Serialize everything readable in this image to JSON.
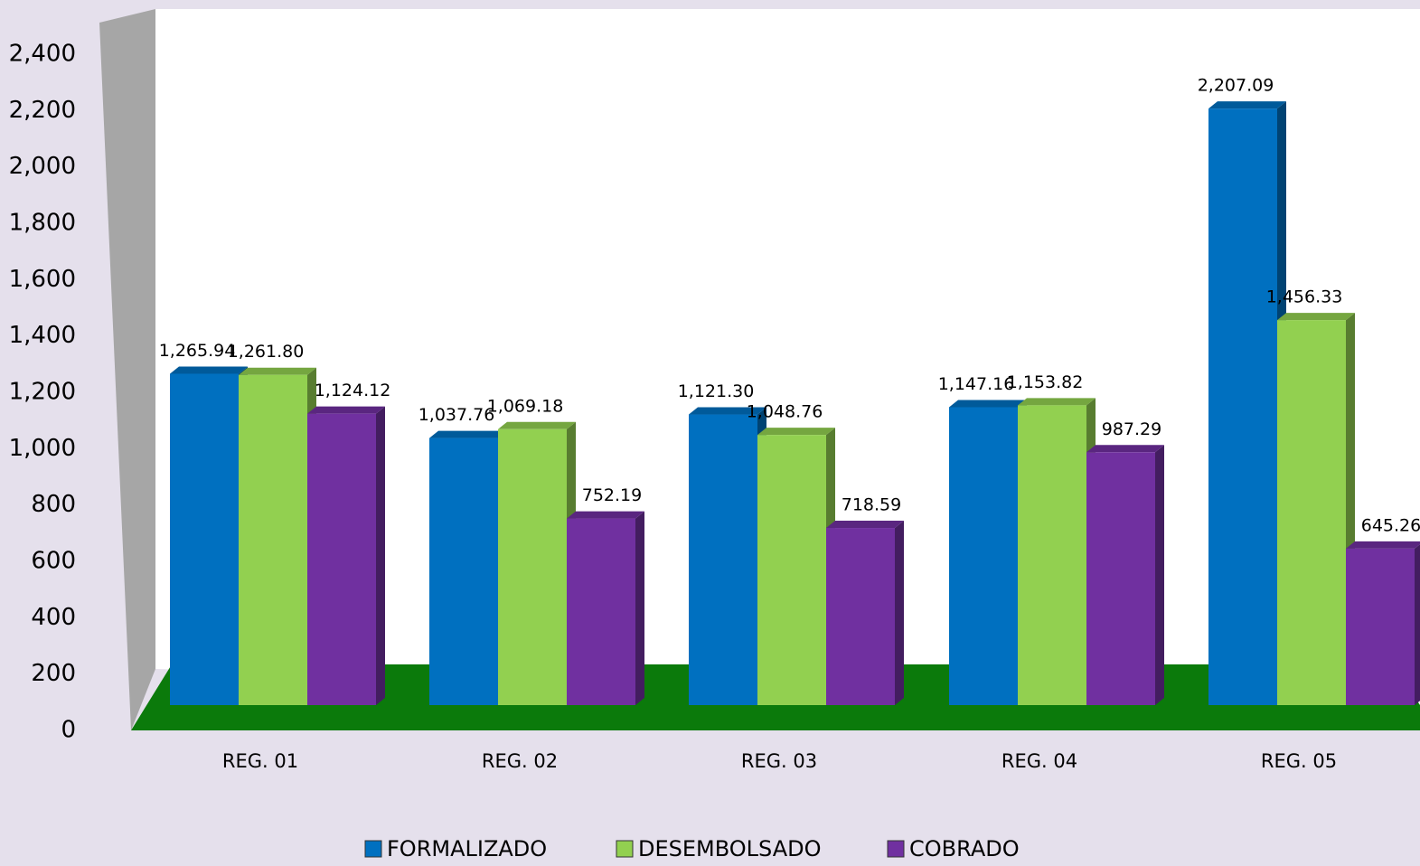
{
  "chart_data": {
    "type": "bar",
    "categories": [
      "REG. 01",
      "REG. 02",
      "REG. 03",
      "REG. 04",
      "REG. 05"
    ],
    "series": [
      {
        "name": "FORMALIZADO",
        "color": "#0070c0",
        "values": [
          1265.94,
          1037.76,
          1121.3,
          1147.16,
          2207.09
        ],
        "value_labels": [
          "1,265.94",
          "1,037.76",
          "1,121.30",
          "1,147.16",
          "2,207.09"
        ]
      },
      {
        "name": "DESEMBOLSADO",
        "color": "#92d050",
        "values": [
          1261.8,
          1069.18,
          1048.76,
          1153.82,
          1456.33
        ],
        "value_labels": [
          "1,261.80",
          "1,069.18",
          "1,048.76",
          "1,153.82",
          "1,456.33"
        ]
      },
      {
        "name": "COBRADO",
        "color": "#7030a0",
        "values": [
          1124.12,
          752.19,
          718.59,
          987.29,
          645.26
        ],
        "value_labels": [
          "1,124.12",
          "752.19",
          "718.59",
          "987.29",
          "645.26"
        ]
      }
    ],
    "ylim": [
      0,
      2400
    ],
    "yticks": [
      0,
      200,
      400,
      600,
      800,
      {
        "value": 1000,
        "label": "1,000"
      },
      {
        "value": 1200,
        "label": "1,200"
      },
      {
        "value": 1400,
        "label": "1,400"
      },
      {
        "value": 1600,
        "label": "1,600"
      },
      {
        "value": 1800,
        "label": "1,800"
      },
      {
        "value": 2000,
        "label": "2,000"
      },
      {
        "value": 2200,
        "label": "2,200"
      },
      {
        "value": 2400,
        "label": "2,400"
      }
    ],
    "legend": "bottom"
  }
}
